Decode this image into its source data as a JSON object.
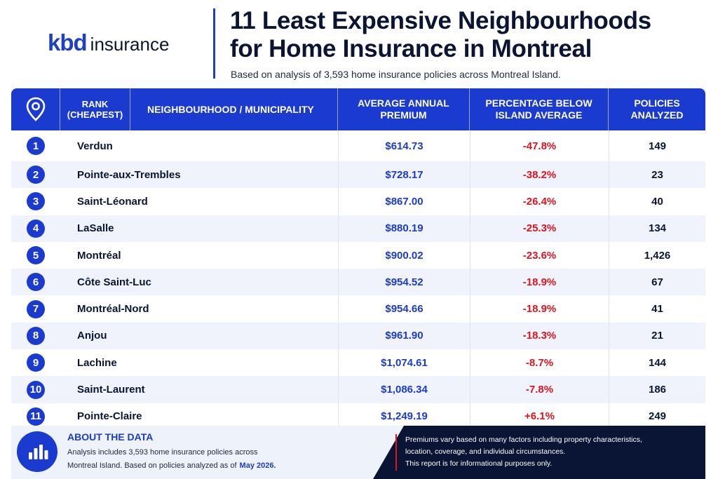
{
  "logo": {
    "brand": "kbd",
    "word": "insurance"
  },
  "title_line1": "11 Least Expensive Neighbourhoods",
  "title_line2": "for Home Insurance in Montreal",
  "subtitle": "Based on analysis of 3,593 home insurance policies across Montreal Island.",
  "columns": {
    "rank": "RANK",
    "rank_sub": "(CHEAPEST)",
    "neighbourhood": "NEIGHBOURHOOD / MUNICIPALITY",
    "premium_l1": "AVERAGE ANNUAL",
    "premium_l2": "PREMIUM",
    "pct_l1": "PERCENTAGE BELOW",
    "pct_l2": "ISLAND AVERAGE",
    "policies_l1": "POLICIES",
    "policies_l2": "ANALYZED"
  },
  "colors": {
    "accent": "#1b3bd0",
    "negative": "#e0141e",
    "dark": "#0a1535"
  },
  "icons": {
    "header": "location-pin-icon",
    "footer": "bar-chart-icon"
  },
  "chart_data": {
    "type": "table",
    "title": "11 Least Expensive Neighbourhoods for Home Insurance in Montreal",
    "columns": [
      "RANK (CHEAPEST)",
      "NEIGHBOURHOOD / MUNICIPALITY",
      "AVERAGE ANNUAL PREMIUM",
      "PERCENTAGE BELOW ISLAND AVERAGE",
      "POLICIES ANALYZED"
    ],
    "rows": [
      {
        "rank": "1",
        "name": "Verdun",
        "premium": "$614.73",
        "pct": "-47.8%",
        "policies": "149"
      },
      {
        "rank": "2",
        "name": "Pointe-aux-Trembles",
        "premium": "$728.17",
        "pct": "-38.2%",
        "policies": "23"
      },
      {
        "rank": "3",
        "name": "Saint-Léonard",
        "premium": "$867.00",
        "pct": "-26.4%",
        "policies": "40"
      },
      {
        "rank": "4",
        "name": "LaSalle",
        "premium": "$880.19",
        "pct": "-25.3%",
        "policies": "134"
      },
      {
        "rank": "5",
        "name": "Montréal",
        "premium": "$900.02",
        "pct": "-23.6%",
        "policies": "1,426"
      },
      {
        "rank": "6",
        "name": "Côte Saint-Luc",
        "premium": "$954.52",
        "pct": "-18.9%",
        "policies": "67"
      },
      {
        "rank": "7",
        "name": "Montréal-Nord",
        "premium": "$954.66",
        "pct": "-18.9%",
        "policies": "41"
      },
      {
        "rank": "8",
        "name": "Anjou",
        "premium": "$961.90",
        "pct": "-18.3%",
        "policies": "21"
      },
      {
        "rank": "9",
        "name": "Lachine",
        "premium": "$1,074.61",
        "pct": "-8.7%",
        "policies": "144"
      },
      {
        "rank": "10",
        "name": "Saint-Laurent",
        "premium": "$1,086.34",
        "pct": "-7.8%",
        "policies": "186"
      },
      {
        "rank": "11",
        "name": "Pointe-Claire",
        "premium": "$1,249.19",
        "pct": "+6.1%",
        "policies": "249"
      }
    ]
  },
  "footer": {
    "about_title": "ABOUT THE DATA",
    "about_line1": "Analysis includes 3,593 home insurance policies across",
    "about_line2": "Montreal Island. Based on policies analyzed as of",
    "about_date": "May 2026.",
    "disclaimer_line1": "Premiums vary based on many factors including property characteristics,",
    "disclaimer_line2": "location, coverage, and individual circumstances.",
    "disclaimer_line3": "This report is for informational purposes only."
  }
}
